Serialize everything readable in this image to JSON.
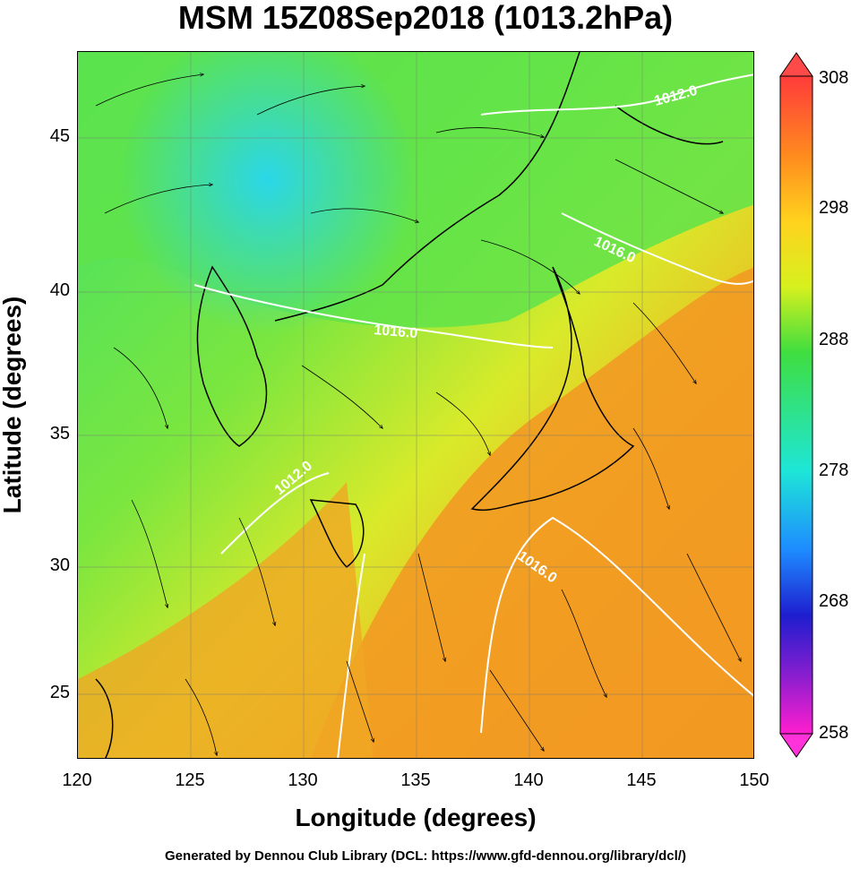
{
  "title": "MSM 15Z08Sep2018 (1013.2hPa)",
  "axes": {
    "xlabel": "Longitude (degrees)",
    "ylabel": "Latitude  (degrees)",
    "x_ticks": [
      "120",
      "125",
      "130",
      "135",
      "140",
      "145",
      "150"
    ],
    "y_ticks": [
      "45",
      "40",
      "35",
      "30",
      "25"
    ]
  },
  "colorbar": {
    "labels": [
      "308",
      "298",
      "288",
      "278",
      "268",
      "258"
    ],
    "colors": [
      "#ff3b3b",
      "#ff8a1e",
      "#ffd21e",
      "#d7f01e",
      "#3fde3f",
      "#1ee6d7",
      "#1e8cff",
      "#1e1ecf",
      "#7a1ecf",
      "#ff1ecf"
    ]
  },
  "contour_labels": [
    "1012.0",
    "1016.0",
    "1016.0",
    "1012.0",
    "1016.0"
  ],
  "footer": "Generated by Dennou Club Library (DCL: https://www.gfd-dennou.org/library/dcl/)",
  "map_extent": {
    "lon": [
      120,
      150
    ],
    "lat": [
      22.5,
      47.6
    ]
  }
}
